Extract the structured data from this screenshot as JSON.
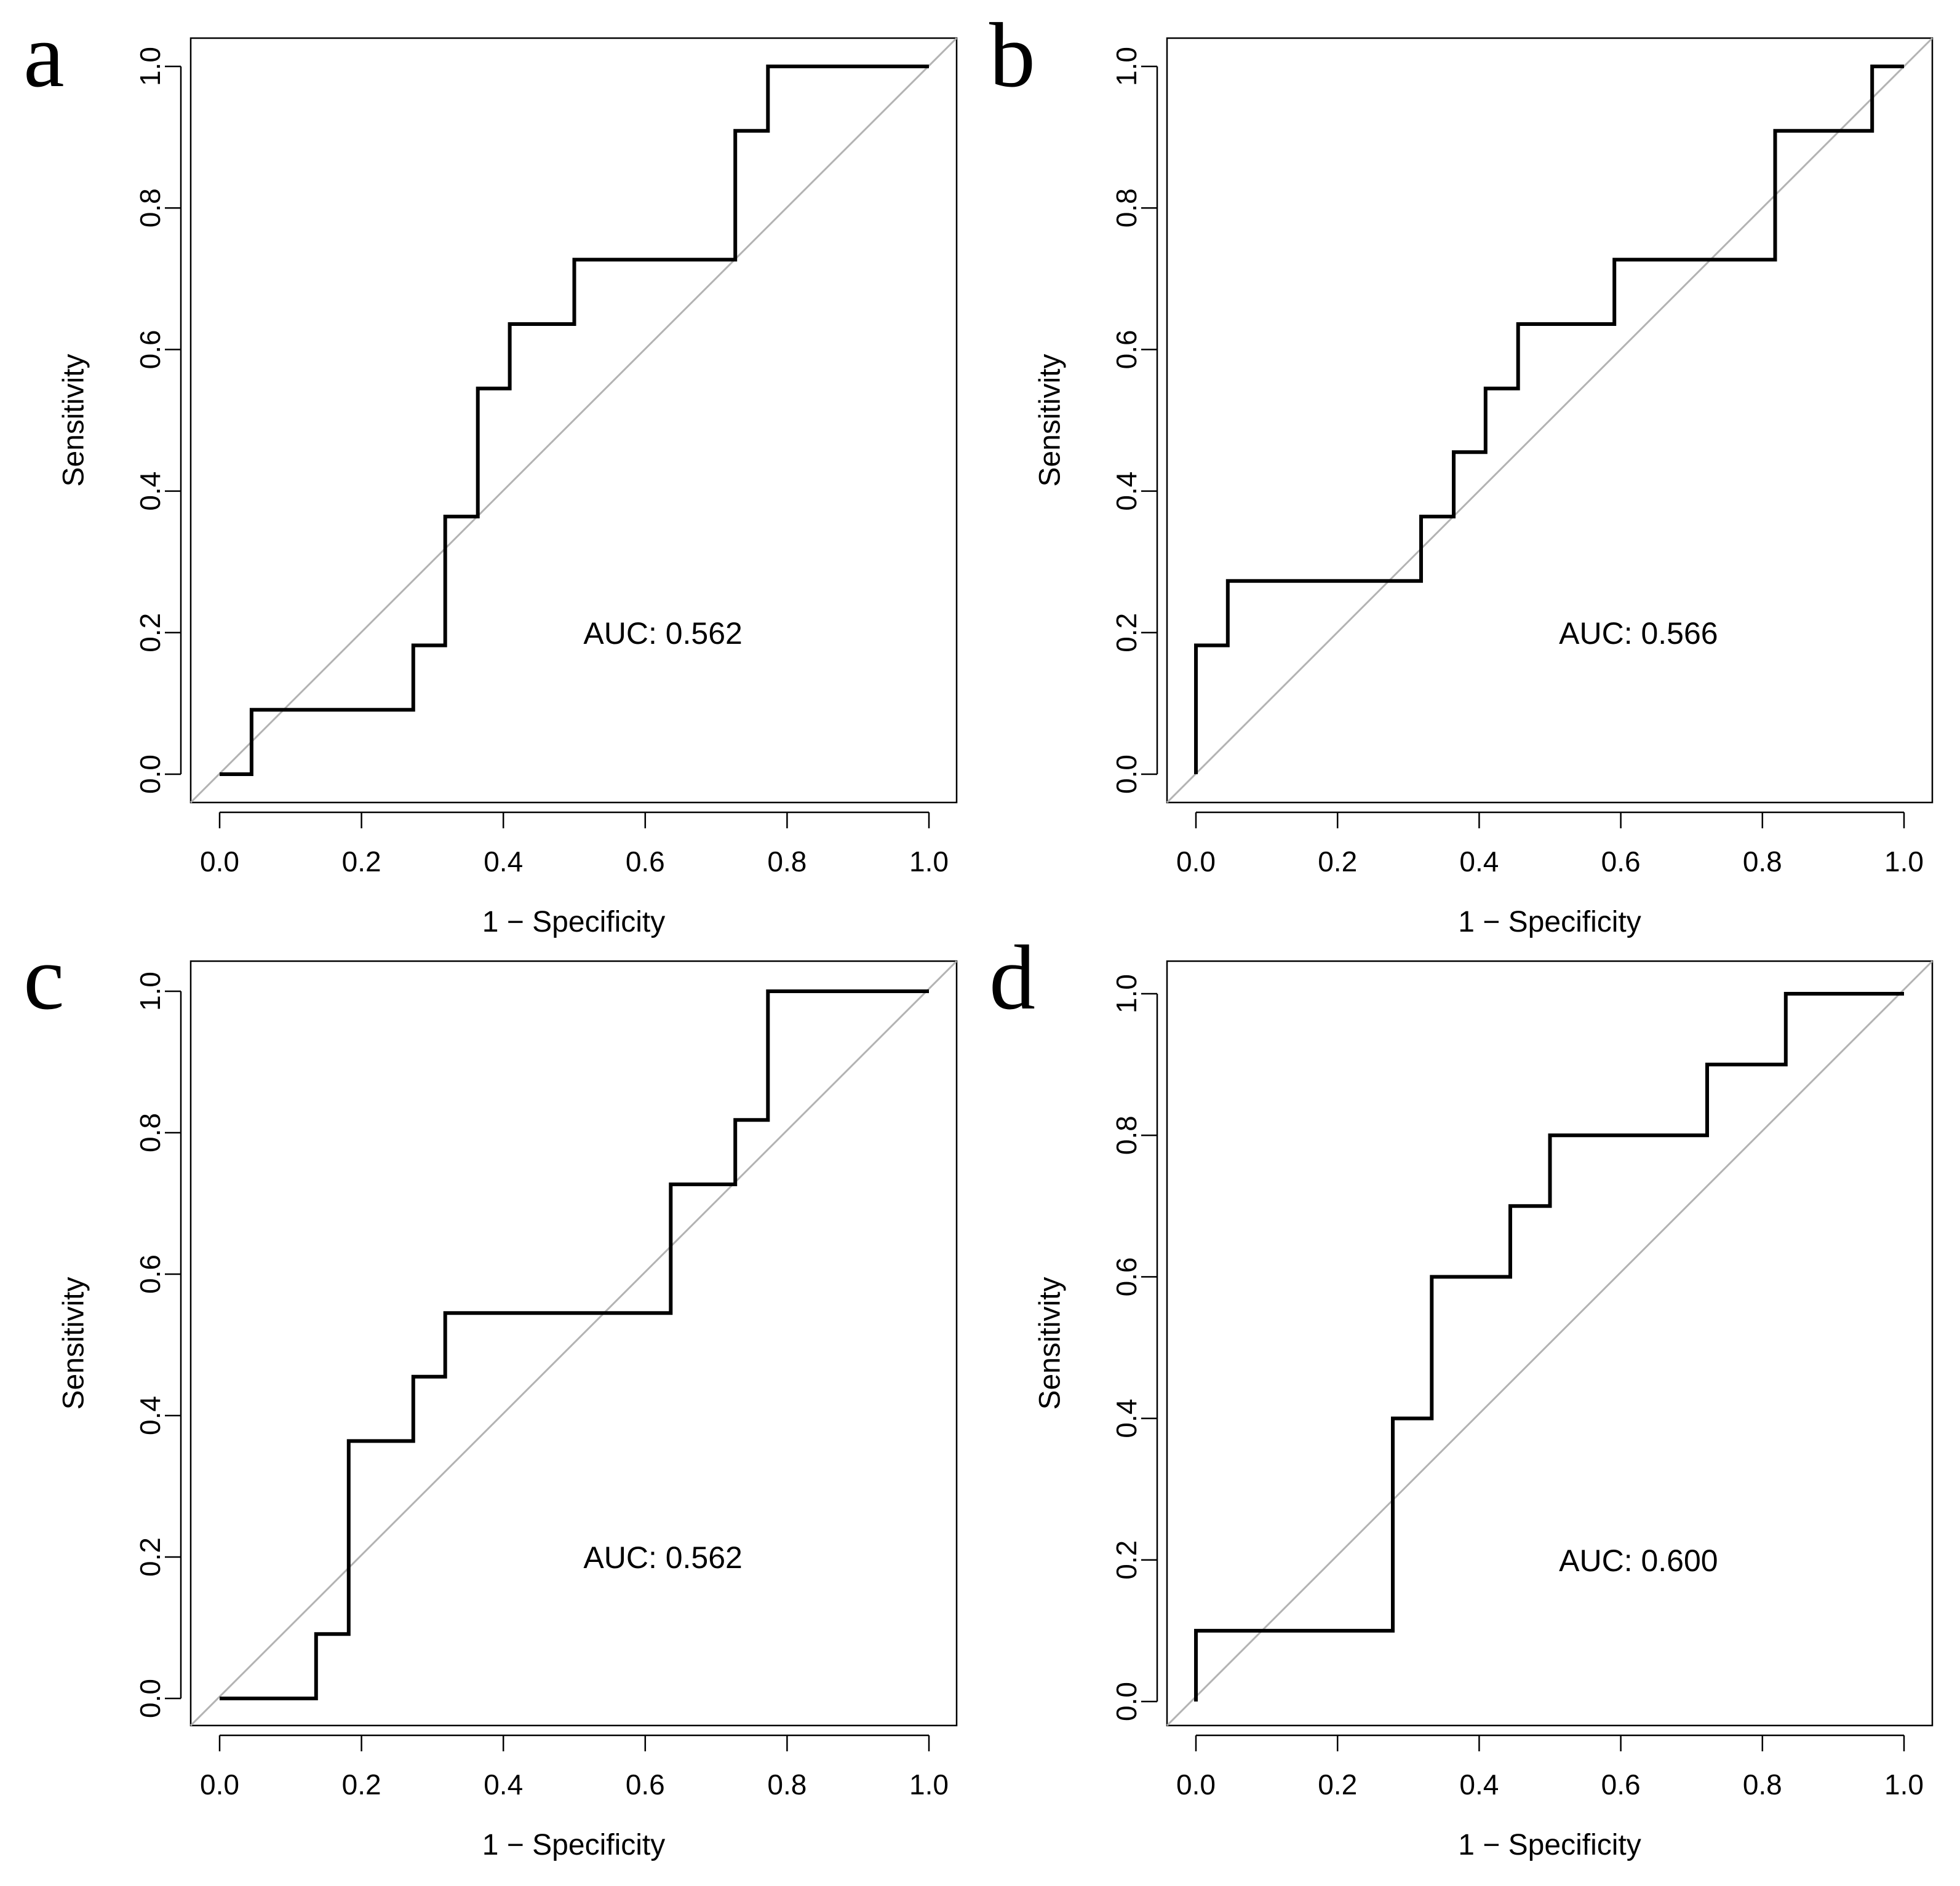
{
  "colors": {
    "curve": "#000000",
    "diagonal": "#b3b3b3",
    "frame": "#000000",
    "background": "#ffffff"
  },
  "chart_data": [
    {
      "type": "line",
      "panel": "a",
      "xlabel": "1 − Specificity",
      "ylabel": "Sensitivity",
      "xlim": [
        0,
        1
      ],
      "ylim": [
        0,
        1
      ],
      "xticks": [
        "0.0",
        "0.2",
        "0.4",
        "0.6",
        "0.8",
        "1.0"
      ],
      "yticks": [
        "0.0",
        "0.2",
        "0.4",
        "0.6",
        "0.8",
        "1.0"
      ],
      "grid": false,
      "reference_line": "diagonal",
      "annotation": "AUC: 0.562",
      "series": [
        {
          "x": [
            0,
            0.045,
            0.045,
            0.273,
            0.273,
            0.318,
            0.318,
            0.364,
            0.364,
            0.409,
            0.409,
            0.5,
            0.5,
            0.727,
            0.727,
            0.773,
            0.773,
            1.0
          ],
          "y": [
            0,
            0,
            0.091,
            0.091,
            0.182,
            0.182,
            0.364,
            0.364,
            0.545,
            0.545,
            0.636,
            0.636,
            0.727,
            0.727,
            0.909,
            0.909,
            1.0,
            1.0
          ]
        }
      ]
    },
    {
      "type": "line",
      "panel": "b",
      "xlabel": "1 − Specificity",
      "ylabel": "Sensitivity",
      "xlim": [
        0,
        1
      ],
      "ylim": [
        0,
        1
      ],
      "xticks": [
        "0.0",
        "0.2",
        "0.4",
        "0.6",
        "0.8",
        "1.0"
      ],
      "yticks": [
        "0.0",
        "0.2",
        "0.4",
        "0.6",
        "0.8",
        "1.0"
      ],
      "grid": false,
      "reference_line": "diagonal",
      "annotation": "AUC: 0.566",
      "series": [
        {
          "x": [
            0,
            0,
            0.045,
            0.045,
            0.318,
            0.318,
            0.364,
            0.364,
            0.409,
            0.409,
            0.455,
            0.455,
            0.591,
            0.591,
            0.818,
            0.818,
            0.955,
            0.955,
            1.0
          ],
          "y": [
            0,
            0.182,
            0.182,
            0.273,
            0.273,
            0.364,
            0.364,
            0.455,
            0.455,
            0.545,
            0.545,
            0.636,
            0.636,
            0.727,
            0.727,
            0.909,
            0.909,
            1.0,
            1.0
          ]
        }
      ]
    },
    {
      "type": "line",
      "panel": "c",
      "xlabel": "1 − Specificity",
      "ylabel": "Sensitivity",
      "xlim": [
        0,
        1
      ],
      "ylim": [
        0,
        1
      ],
      "xticks": [
        "0.0",
        "0.2",
        "0.4",
        "0.6",
        "0.8",
        "1.0"
      ],
      "yticks": [
        "0.0",
        "0.2",
        "0.4",
        "0.6",
        "0.8",
        "1.0"
      ],
      "grid": false,
      "reference_line": "diagonal",
      "annotation": "AUC: 0.562",
      "series": [
        {
          "x": [
            0,
            0.136,
            0.136,
            0.182,
            0.182,
            0.273,
            0.273,
            0.318,
            0.318,
            0.636,
            0.636,
            0.727,
            0.727,
            0.773,
            0.773,
            1.0
          ],
          "y": [
            0,
            0,
            0.091,
            0.091,
            0.364,
            0.364,
            0.455,
            0.455,
            0.545,
            0.545,
            0.727,
            0.727,
            0.818,
            0.818,
            1.0,
            1.0
          ]
        }
      ]
    },
    {
      "type": "line",
      "panel": "d",
      "xlabel": "1 − Specificity",
      "ylabel": "Sensitivity",
      "xlim": [
        0,
        1
      ],
      "ylim": [
        0,
        1
      ],
      "xticks": [
        "0.0",
        "0.2",
        "0.4",
        "0.6",
        "0.8",
        "1.0"
      ],
      "yticks": [
        "0.0",
        "0.2",
        "0.4",
        "0.6",
        "0.8",
        "1.0"
      ],
      "grid": false,
      "reference_line": "diagonal",
      "annotation": "AUC: 0.600",
      "series": [
        {
          "x": [
            0,
            0,
            0.278,
            0.278,
            0.333,
            0.333,
            0.444,
            0.444,
            0.5,
            0.5,
            0.722,
            0.722,
            0.833,
            0.833,
            1.0
          ],
          "y": [
            0,
            0.1,
            0.1,
            0.4,
            0.4,
            0.6,
            0.6,
            0.7,
            0.7,
            0.8,
            0.8,
            0.9,
            0.9,
            1.0,
            1.0
          ]
        }
      ]
    }
  ]
}
